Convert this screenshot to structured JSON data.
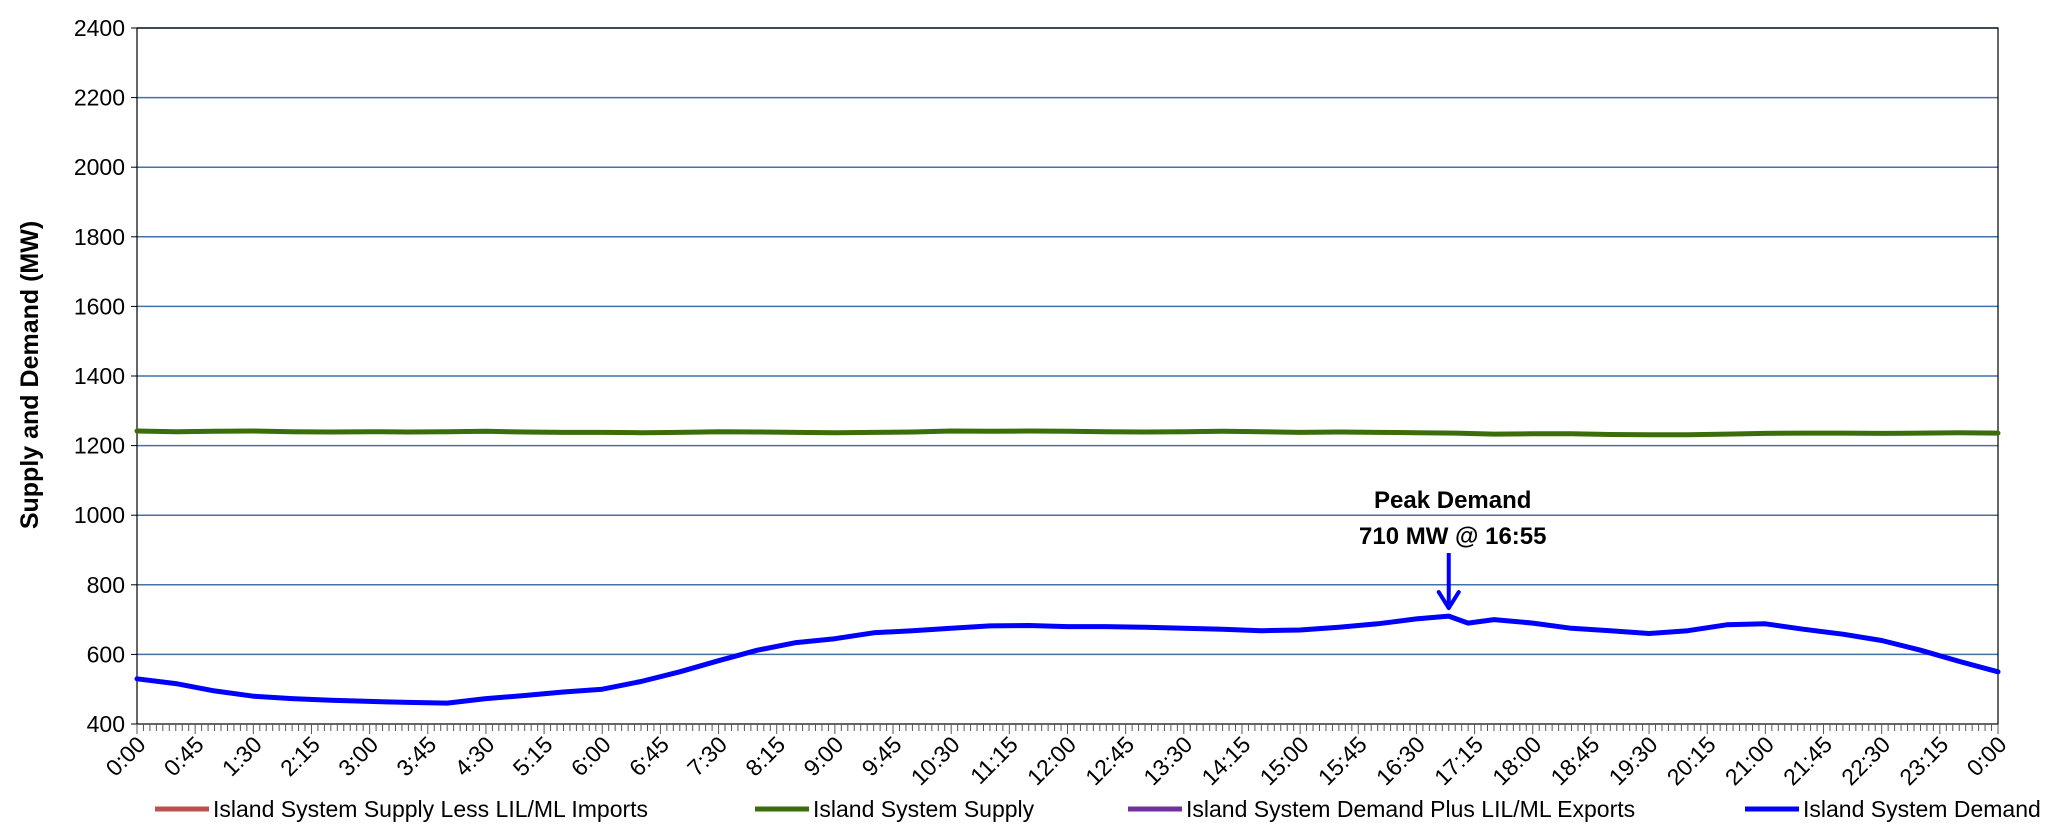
{
  "chart_data": {
    "type": "line",
    "title": "",
    "xlabel": "",
    "ylabel": "Supply and Demand (MW)",
    "ylim": [
      400,
      2400
    ],
    "xlim": [
      "0:00",
      "24:00"
    ],
    "y_ticks": [
      "400",
      "600",
      "800",
      "1000",
      "1200",
      "1400",
      "1600",
      "1800",
      "2000",
      "2200",
      "2400"
    ],
    "x_ticks": [
      "0:00",
      "0:45",
      "1:30",
      "2:15",
      "3:00",
      "3:45",
      "4:30",
      "5:15",
      "6:00",
      "6:45",
      "7:30",
      "8:15",
      "9:00",
      "9:45",
      "10:30",
      "11:15",
      "12:00",
      "12:45",
      "13:30",
      "14:15",
      "15:00",
      "15:45",
      "16:30",
      "17:15",
      "18:00",
      "18:45",
      "19:30",
      "20:15",
      "21:00",
      "21:45",
      "22:30",
      "23:15",
      "0:00"
    ],
    "grid": "horizontal",
    "legend_position": "bottom",
    "series": [
      {
        "name": "Island System Supply Less LIL/ML Imports",
        "color": "#C0504D",
        "x": [],
        "values": []
      },
      {
        "name": "Island System Supply",
        "color": "#3B6D0B",
        "x": [
          "0:00",
          "0:30",
          "1:00",
          "1:30",
          "2:00",
          "2:30",
          "3:00",
          "3:30",
          "4:00",
          "4:30",
          "5:00",
          "5:30",
          "6:00",
          "6:30",
          "7:00",
          "7:30",
          "8:00",
          "8:30",
          "9:00",
          "9:30",
          "10:00",
          "10:30",
          "11:00",
          "11:30",
          "12:00",
          "12:30",
          "13:00",
          "13:30",
          "14:00",
          "14:30",
          "15:00",
          "15:30",
          "16:00",
          "16:30",
          "17:00",
          "17:30",
          "18:00",
          "18:30",
          "19:00",
          "19:30",
          "20:00",
          "20:30",
          "21:00",
          "21:30",
          "22:00",
          "22:30",
          "23:00",
          "23:30",
          "24:00"
        ],
        "values": [
          1242,
          1240,
          1241,
          1242,
          1240,
          1239,
          1240,
          1239,
          1240,
          1241,
          1239,
          1238,
          1238,
          1237,
          1238,
          1240,
          1239,
          1238,
          1237,
          1238,
          1239,
          1242,
          1241,
          1242,
          1241,
          1240,
          1239,
          1240,
          1241,
          1240,
          1238,
          1239,
          1238,
          1237,
          1236,
          1233,
          1234,
          1234,
          1232,
          1231,
          1231,
          1233,
          1235,
          1236,
          1236,
          1235,
          1236,
          1237,
          1236
        ]
      },
      {
        "name": "Island System Demand Plus LIL/ML Exports",
        "color": "#7030A0",
        "x": [],
        "values": []
      },
      {
        "name": "Island System Demand",
        "color": "#0000FF",
        "x": [
          "0:00",
          "0:30",
          "1:00",
          "1:30",
          "2:00",
          "2:30",
          "3:00",
          "3:30",
          "4:00",
          "4:30",
          "5:00",
          "5:30",
          "6:00",
          "6:30",
          "7:00",
          "7:30",
          "8:00",
          "8:30",
          "9:00",
          "9:30",
          "10:00",
          "10:30",
          "11:00",
          "11:30",
          "12:00",
          "12:30",
          "13:00",
          "13:30",
          "14:00",
          "14:30",
          "15:00",
          "15:30",
          "16:00",
          "16:30",
          "16:55",
          "17:10",
          "17:30",
          "18:00",
          "18:30",
          "19:00",
          "19:30",
          "20:00",
          "20:30",
          "21:00",
          "21:30",
          "22:00",
          "22:30",
          "23:00",
          "23:30",
          "24:00"
        ],
        "values": [
          530,
          516,
          495,
          480,
          473,
          468,
          465,
          462,
          460,
          473,
          482,
          492,
          500,
          522,
          550,
          582,
          612,
          634,
          645,
          662,
          668,
          675,
          682,
          683,
          680,
          680,
          678,
          675,
          672,
          668,
          670,
          678,
          688,
          702,
          710,
          690,
          700,
          690,
          675,
          668,
          660,
          668,
          685,
          688,
          672,
          658,
          640,
          612,
          580,
          550
        ]
      }
    ],
    "annotations": [
      {
        "line1": "Peak Demand",
        "line2": "710 MW @ 16:55",
        "x": "16:55",
        "y": 710,
        "color": "#0000FF"
      }
    ]
  }
}
